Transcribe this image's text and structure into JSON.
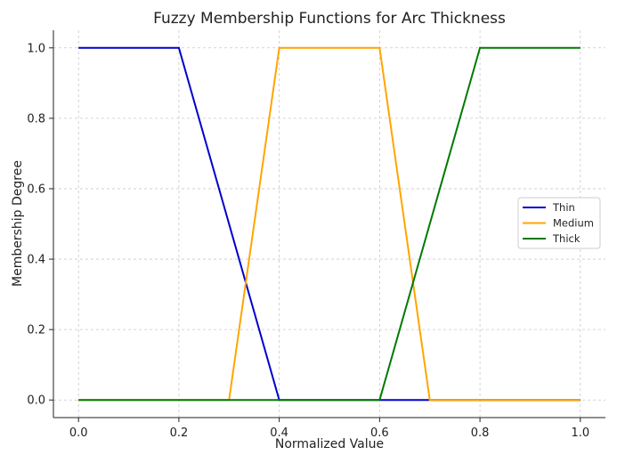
{
  "chart_data": {
    "type": "line",
    "title": "Fuzzy Membership Functions for Arc Thickness",
    "xlabel": "Normalized Value",
    "ylabel": "Membership Degree",
    "xlim": [
      -0.05,
      1.05
    ],
    "ylim": [
      -0.05,
      1.05
    ],
    "xticks": [
      "0.0",
      "0.2",
      "0.4",
      "0.6",
      "0.8",
      "1.0"
    ],
    "yticks": [
      "0.0",
      "0.2",
      "0.4",
      "0.6",
      "0.8",
      "1.0"
    ],
    "grid": true,
    "legend_position": "center-right",
    "series": [
      {
        "name": "Thin",
        "color": "#0000cc",
        "points": [
          [
            0.0,
            1.0
          ],
          [
            0.2,
            1.0
          ],
          [
            0.4,
            0.0
          ],
          [
            1.0,
            0.0
          ]
        ]
      },
      {
        "name": "Medium",
        "color": "#ffa500",
        "points": [
          [
            0.0,
            0.0
          ],
          [
            0.3,
            0.0
          ],
          [
            0.4,
            1.0
          ],
          [
            0.6,
            1.0
          ],
          [
            0.7,
            0.0
          ],
          [
            1.0,
            0.0
          ]
        ]
      },
      {
        "name": "Thick",
        "color": "#007a00",
        "points": [
          [
            0.0,
            0.0
          ],
          [
            0.6,
            0.0
          ],
          [
            0.8,
            1.0
          ],
          [
            1.0,
            1.0
          ]
        ]
      }
    ]
  }
}
